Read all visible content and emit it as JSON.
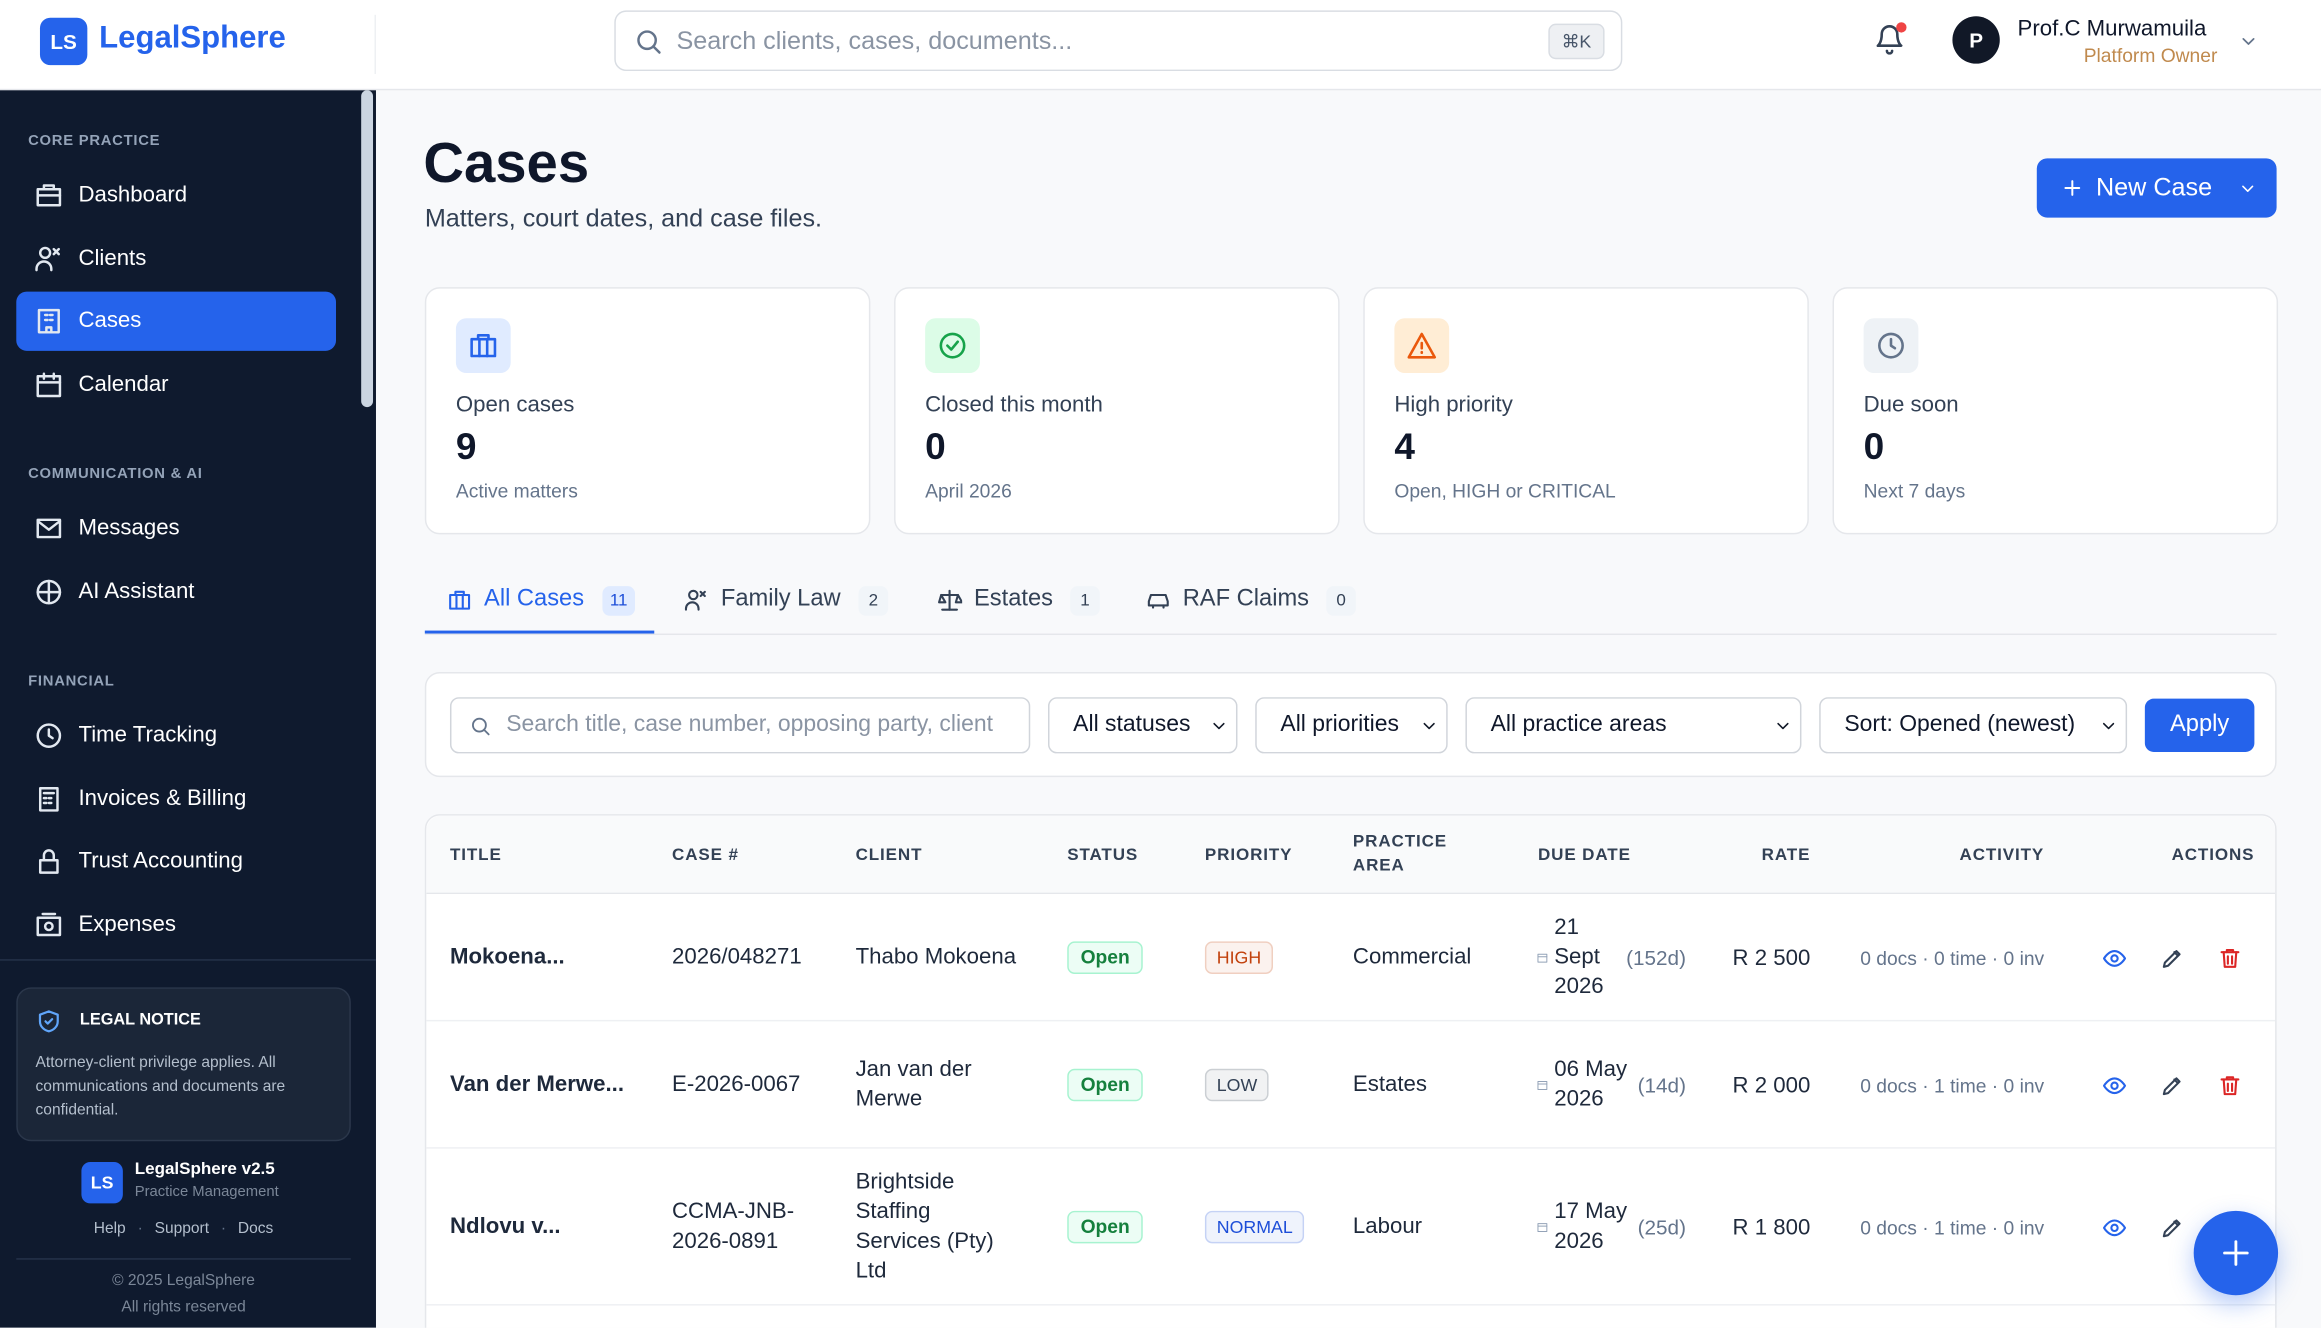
{
  "brand": {
    "logo": "LS",
    "name": "LegalSphere"
  },
  "search": {
    "placeholder": "Search clients, cases, documents...",
    "shortcut": "⌘K"
  },
  "user": {
    "initial": "P",
    "name": "Prof.C Murwamuila",
    "role": "Platform Owner"
  },
  "sidebar": {
    "sections": [
      {
        "title": "CORE PRACTICE",
        "items": [
          "Dashboard",
          "Clients",
          "Cases",
          "Calendar"
        ]
      },
      {
        "title": "COMMUNICATION & AI",
        "items": [
          "Messages",
          "AI Assistant"
        ]
      },
      {
        "title": "FINANCIAL",
        "items": [
          "Time Tracking",
          "Invoices & Billing",
          "Trust Accounting",
          "Expenses"
        ]
      }
    ],
    "notice": {
      "title": "LEGAL NOTICE",
      "text": "Attorney-client privilege applies. All communications and documents are confidential."
    },
    "footer": {
      "logo": "LS",
      "name": "LegalSphere v2.5",
      "tagline": "Practice Management",
      "links": [
        "Help",
        "Support",
        "Docs"
      ],
      "copyright": "© 2025 LegalSphere",
      "rights": "All rights reserved"
    }
  },
  "page": {
    "title": "Cases",
    "subtitle": "Matters, court dates, and case files.",
    "new_button": "New Case"
  },
  "stats": [
    {
      "label": "Open cases",
      "value": 9,
      "note": "Active matters",
      "color": "#2563eb",
      "bg": "#e0ebff"
    },
    {
      "label": "Closed this month",
      "value": 0,
      "note": "April 2026",
      "color": "#16a34a",
      "bg": "#dcfce7"
    },
    {
      "label": "High priority",
      "value": 4,
      "note": "Open, HIGH or CRITICAL",
      "color": "#ea580c",
      "bg": "#ffedd5"
    },
    {
      "label": "Due soon",
      "value": 0,
      "note": "Next 7 days",
      "color": "#64748b",
      "bg": "#eef2f6"
    }
  ],
  "tabs": [
    {
      "label": "All Cases",
      "count": 11
    },
    {
      "label": "Family Law",
      "count": 2
    },
    {
      "label": "Estates",
      "count": 1
    },
    {
      "label": "RAF Claims",
      "count": 0
    }
  ],
  "filters": {
    "search_placeholder": "Search title, case number, opposing party, client",
    "selects": [
      "All statuses",
      "All priorities",
      "All practice areas",
      "Sort: Opened (newest)"
    ],
    "apply": "Apply"
  },
  "table": {
    "headers": [
      "TITLE",
      "CASE #",
      "CLIENT",
      "STATUS",
      "PRIORITY",
      "PRACTICE AREA",
      "DUE DATE",
      "RATE",
      "ACTIVITY",
      "ACTIONS"
    ],
    "rows": [
      {
        "title": "Mokoena...",
        "case_number": "2026/048271",
        "client": "Thabo Mokoena",
        "status": "Open",
        "priority": "HIGH",
        "priority_color": "#c2410c",
        "practice_area": "Commercial",
        "due_date": "21 Sept 2026",
        "due_in": "(152d)",
        "rate": "R 2 500",
        "activity": "0 docs · 0 time · 0 inv"
      },
      {
        "title": "Van der Merwe...",
        "case_number": "E-2026-0067",
        "client": "Jan van der Merwe",
        "status": "Open",
        "priority": "LOW",
        "priority_color": "#334155",
        "practice_area": "Estates",
        "due_date": "06 May 2026",
        "due_in": "(14d)",
        "rate": "R 2 000",
        "activity": "0 docs · 1 time · 0 inv"
      },
      {
        "title": "Ndlovu v...",
        "case_number": "CCMA-JNB-2026-0891",
        "client": "Brightside Staffing Services (Pty) Ltd",
        "status": "Open",
        "priority": "NORMAL",
        "priority_color": "#1d4ed8",
        "practice_area": "Labour",
        "due_date": "17 May 2026",
        "due_in": "(25d)",
        "rate": "R 1 800",
        "activity": "0 docs · 1 time · 0 inv"
      }
    ]
  }
}
